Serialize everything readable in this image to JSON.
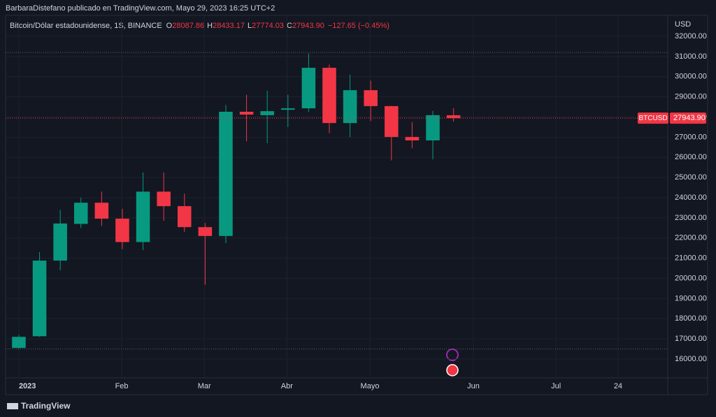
{
  "header": {
    "publisher": "BarbaraDistefano publicado en TradingView.com, Mayo 29, 2023 16:25 UTC+2"
  },
  "chart_data": {
    "type": "candlestick",
    "symbol": "Bitcoin/Dólar estadounidense, 1S, BINANCE",
    "ohlc_legend": [
      {
        "key": "O",
        "text": "28087.86"
      },
      {
        "key": "H",
        "text": "28433.17"
      },
      {
        "key": "L",
        "text": "27774.03"
      },
      {
        "key": "C",
        "text": "27943.90"
      }
    ],
    "change_text": "−127.65 (−0.45%)",
    "currency": "USD",
    "categories": [
      null,
      null,
      null,
      null,
      null,
      null,
      null,
      null,
      null,
      null,
      null,
      null,
      null,
      null,
      null,
      null,
      null,
      null,
      null,
      null,
      null,
      null
    ],
    "open": [
      16550,
      17130,
      20880,
      22700,
      23750,
      22960,
      21800,
      24300,
      23580,
      22540,
      22100,
      28260,
      28090,
      28360,
      28430,
      30440,
      27700,
      29330,
      28540,
      27010,
      26840,
      28087.86
    ],
    "high": [
      17200,
      21300,
      23400,
      24000,
      24300,
      23450,
      25250,
      25250,
      24200,
      22750,
      28600,
      29100,
      29300,
      29100,
      31150,
      30600,
      30100,
      29800,
      28550,
      27750,
      28300,
      28433.17
    ],
    "low": [
      16500,
      17100,
      20400,
      22500,
      22600,
      21450,
      21400,
      22850,
      22300,
      19680,
      21750,
      26800,
      26700,
      27500,
      28250,
      27200,
      27000,
      27800,
      25850,
      26450,
      25900,
      27774.03
    ],
    "close": [
      17100,
      20880,
      22720,
      23750,
      22960,
      21800,
      24300,
      23580,
      22540,
      22100,
      28260,
      28120,
      28290,
      28430,
      30440,
      27700,
      29330,
      28540,
      27010,
      26840,
      28090,
      27943.9
    ],
    "up_color": "#089981",
    "down_color": "#f23645",
    "price_line": {
      "name": "BTCUSD",
      "value": 27943.9,
      "label": "27943.90"
    },
    "range_lines": [
      31200,
      16500
    ],
    "ylim": [
      15065,
      33039
    ],
    "yticks": [
      {
        "value": 16000,
        "label": "16000.00"
      },
      {
        "value": 17000,
        "label": "17000.00"
      },
      {
        "value": 18000,
        "label": "18000.00"
      },
      {
        "value": 19000,
        "label": "19000.00"
      },
      {
        "value": 20000,
        "label": "20000.00"
      },
      {
        "value": 21000,
        "label": "21000.00"
      },
      {
        "value": 22000,
        "label": "22000.00"
      },
      {
        "value": 23000,
        "label": "23000.00"
      },
      {
        "value": 24000,
        "label": "24000.00"
      },
      {
        "value": 25000,
        "label": "25000.00"
      },
      {
        "value": 26000,
        "label": "26000.00"
      },
      {
        "value": 27000,
        "label": "27000.00"
      },
      {
        "value": 28000,
        "label": "28000.00"
      },
      {
        "value": 29000,
        "label": "29000.00"
      },
      {
        "value": 30000,
        "label": "30000.00"
      },
      {
        "value": 31000,
        "label": "31000.00"
      },
      {
        "value": 32000,
        "label": "32000.00"
      }
    ],
    "xlim": [
      -0.64,
      31.35
    ],
    "xticks": [
      {
        "value": 0,
        "label": "2023"
      },
      {
        "value": 4.97,
        "label": "Feb"
      },
      {
        "value": 8.96,
        "label": "Mar"
      },
      {
        "value": 12.95,
        "label": "Abr"
      },
      {
        "value": 16.96,
        "label": "Mayo"
      },
      {
        "value": 21.96,
        "label": "Jun"
      },
      {
        "value": 25.95,
        "label": "Jul"
      },
      {
        "value": 28.95,
        "label": "24"
      }
    ],
    "grid": true
  },
  "footer": {
    "brand": "TradingView"
  }
}
